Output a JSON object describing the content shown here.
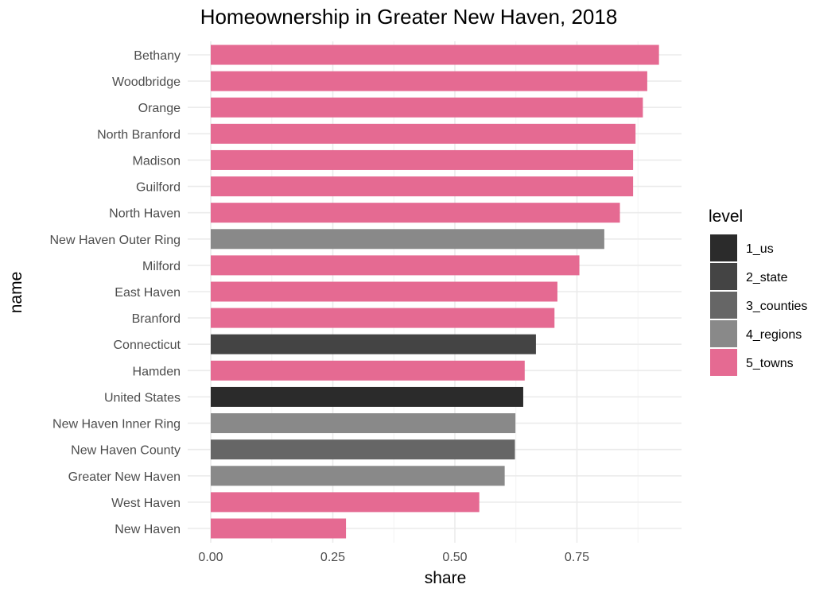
{
  "chart_data": {
    "type": "bar",
    "orientation": "horizontal",
    "title": "Homeownership in Greater New Haven, 2018",
    "xlabel": "share",
    "ylabel": "name",
    "xlim": [
      0,
      0.92
    ],
    "x_ticks": [
      0,
      0.25,
      0.5,
      0.75
    ],
    "x_tick_labels": [
      "0.00",
      "0.25",
      "0.50",
      "0.75"
    ],
    "grid": true,
    "legend": {
      "title": "level",
      "position": "right",
      "entries": [
        {
          "label": "1_us",
          "color": "#2b2b2b"
        },
        {
          "label": "2_state",
          "color": "#444444"
        },
        {
          "label": "3_counties",
          "color": "#666666"
        },
        {
          "label": "4_regions",
          "color": "#898989"
        },
        {
          "label": "5_towns",
          "color": "#e56a92"
        }
      ]
    },
    "bars": [
      {
        "name": "Bethany",
        "value": 0.918,
        "level": "5_towns"
      },
      {
        "name": "Woodbridge",
        "value": 0.894,
        "level": "5_towns"
      },
      {
        "name": "Orange",
        "value": 0.885,
        "level": "5_towns"
      },
      {
        "name": "North Branford",
        "value": 0.87,
        "level": "5_towns"
      },
      {
        "name": "Madison",
        "value": 0.865,
        "level": "5_towns"
      },
      {
        "name": "Guilford",
        "value": 0.865,
        "level": "5_towns"
      },
      {
        "name": "North Haven",
        "value": 0.838,
        "level": "5_towns"
      },
      {
        "name": "New Haven Outer Ring",
        "value": 0.806,
        "level": "4_regions"
      },
      {
        "name": "Milford",
        "value": 0.755,
        "level": "5_towns"
      },
      {
        "name": "East Haven",
        "value": 0.71,
        "level": "5_towns"
      },
      {
        "name": "Branford",
        "value": 0.704,
        "level": "5_towns"
      },
      {
        "name": "Connecticut",
        "value": 0.666,
        "level": "2_state"
      },
      {
        "name": "Hamden",
        "value": 0.643,
        "level": "5_towns"
      },
      {
        "name": "United States",
        "value": 0.64,
        "level": "1_us"
      },
      {
        "name": "New Haven Inner Ring",
        "value": 0.624,
        "level": "4_regions"
      },
      {
        "name": "New Haven County",
        "value": 0.623,
        "level": "3_counties"
      },
      {
        "name": "Greater New Haven",
        "value": 0.602,
        "level": "4_regions"
      },
      {
        "name": "West Haven",
        "value": 0.55,
        "level": "5_towns"
      },
      {
        "name": "New Haven",
        "value": 0.277,
        "level": "5_towns"
      }
    ]
  }
}
